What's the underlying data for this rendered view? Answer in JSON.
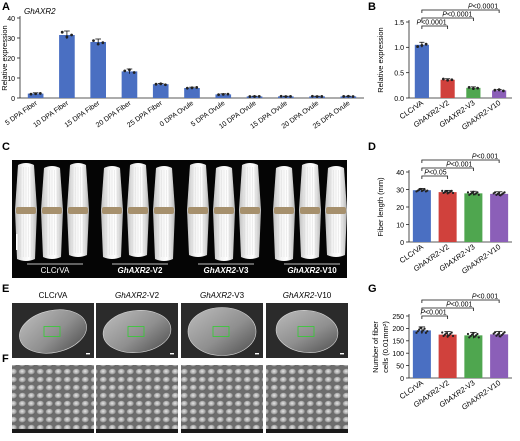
{
  "panels": {
    "A": {
      "letter": "A",
      "gene": "GhAXR2",
      "chart_data": {
        "type": "bar",
        "title": "GhAXR2",
        "ylabel": "Relative expression",
        "ylim": [
          0,
          40
        ],
        "yticks": [
          0,
          10,
          20,
          30,
          40
        ],
        "categories": [
          "5 DPA Fiber",
          "10 DPA Fiber",
          "15 DPA Fiber",
          "20 DPA Fiber",
          "25 DPA Fiber",
          "0 DPA Ovule",
          "5 DPA Ovule",
          "10 DPA Ovule",
          "15 DPA Ovule",
          "20 DPA Ovule",
          "25 DPA Ovule"
        ],
        "values": [
          2.2,
          31.5,
          28.0,
          13.3,
          6.9,
          5.0,
          1.8,
          0.8,
          0.8,
          0.8,
          0.8
        ],
        "errors": [
          0.4,
          2.0,
          1.5,
          1.2,
          0.4,
          0.4,
          0.3,
          0.1,
          0.1,
          0.1,
          0.1
        ],
        "bar_colors": [
          "#4a6fc2",
          "#4a6fc2",
          "#4a6fc2",
          "#4a6fc2",
          "#4a6fc2",
          "#4a6fc2",
          "#4a6fc2",
          "#4a6fc2",
          "#4a6fc2",
          "#4a6fc2",
          "#4a6fc2"
        ]
      }
    },
    "B": {
      "letter": "B",
      "chart_data": {
        "type": "bar",
        "ylabel": "Relative expression",
        "ylim": [
          0,
          1.5
        ],
        "yticks": [
          "0.0",
          "0.5",
          "1.0",
          "1.5"
        ],
        "categories": [
          "CLCrVA",
          "GhAXR2-V2",
          "GhAXR2-V3",
          "GhAXR2-V10"
        ],
        "values": [
          1.05,
          0.36,
          0.2,
          0.15
        ],
        "errors": [
          0.05,
          0.02,
          0.02,
          0.02
        ],
        "bar_colors": [
          "#4a6fc2",
          "#d0413c",
          "#4fa64f",
          "#8b5fb8"
        ],
        "significance": [
          "P<0.0001",
          "P<0.0001",
          "P<0.0001"
        ]
      }
    },
    "C": {
      "letter": "C",
      "labels": [
        {
          "gene": "",
          "line": "CLCrVA"
        },
        {
          "gene": "GhAXR2",
          "line": "-V2"
        },
        {
          "gene": "GhAXR2",
          "line": "-V3"
        },
        {
          "gene": "GhAXR2",
          "line": "-V10"
        }
      ]
    },
    "D": {
      "letter": "D",
      "chart_data": {
        "type": "bar",
        "ylabel": "Fiber length (mm)",
        "ylim": [
          0,
          40
        ],
        "yticks": [
          0,
          10,
          20,
          30,
          40
        ],
        "categories": [
          "CLCrVA",
          "GhAXR2-V2",
          "GhAXR2-V3",
          "GhAXR2-V10"
        ],
        "values": [
          29.6,
          28.5,
          27.8,
          27.5
        ],
        "errors": [
          1.0,
          1.0,
          1.2,
          1.2
        ],
        "bar_colors": [
          "#4a6fc2",
          "#d0413c",
          "#4fa64f",
          "#8b5fb8"
        ],
        "significance": [
          "P<0.05",
          "P<0.001",
          "P<0.001"
        ]
      }
    },
    "E": {
      "letter": "E",
      "labels": [
        {
          "gene": "",
          "line": "CLCrVA"
        },
        {
          "gene": "GhAXR2",
          "line": "-V2"
        },
        {
          "gene": "GhAXR2",
          "line": "-V3"
        },
        {
          "gene": "GhAXR2",
          "line": "-V10"
        }
      ]
    },
    "F": {
      "letter": "F"
    },
    "G": {
      "letter": "G",
      "chart_data": {
        "type": "bar",
        "ylabel": "Number of fiber cells (0.01mm²)",
        "ylabel_line1": "Number of fiber",
        "ylabel_line2": "cells (0.01mm²)",
        "ylim": [
          0,
          250
        ],
        "yticks": [
          0,
          50,
          100,
          150,
          200,
          250
        ],
        "categories": [
          "CLCrVA",
          "GhAXR2-V2",
          "GhAXR2-V3",
          "GhAXR2-V10"
        ],
        "values": [
          192,
          175,
          172,
          176
        ],
        "errors": [
          14,
          12,
          12,
          12
        ],
        "bar_colors": [
          "#4a6fc2",
          "#d0413c",
          "#4fa64f",
          "#8b5fb8"
        ],
        "significance": [
          "P<0.001",
          "P<0.001",
          "P<0.001"
        ]
      }
    }
  }
}
